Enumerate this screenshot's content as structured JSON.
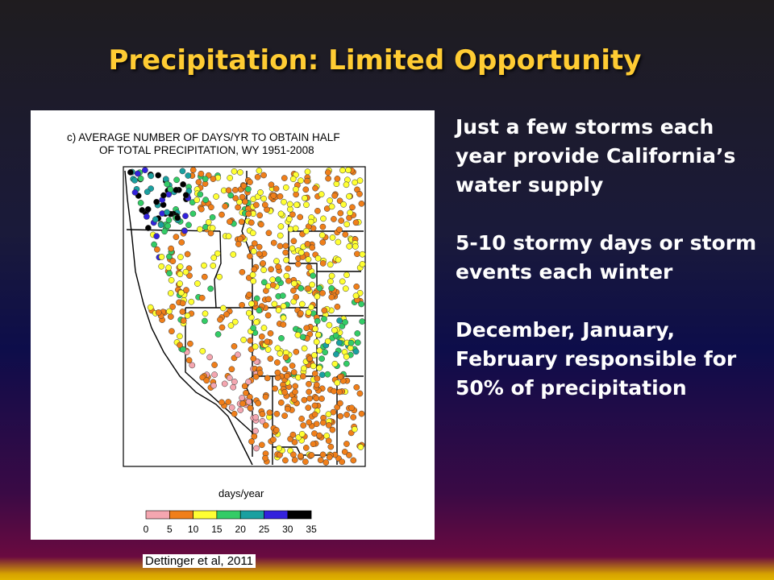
{
  "slide": {
    "title": "Precipitation: Limited Opportunity",
    "bullets": [
      "Just a few storms each year provide California’s water supply",
      "5-10 stormy days or storm events each winter",
      "December, January, February responsible for 50% of precipitation"
    ],
    "citation": "Dettinger et al, 2011",
    "title_color": "#ffcc33"
  },
  "map": {
    "heading_line1": "c) AVERAGE NUMBER OF DAYS/YR TO OBTAIN HALF",
    "heading_line2": "OF TOTAL PRECIPITATION, WY 1951-2008",
    "colorbar_label": "days/year",
    "colorbar_ticks": [
      "0",
      "5",
      "10",
      "15",
      "20",
      "25",
      "30",
      "35"
    ],
    "colorbar_colors": [
      "#f4a6b0",
      "#f07f1a",
      "#ffff33",
      "#33cc66",
      "#1aa0a0",
      "#3322dd",
      "#000000"
    ]
  }
}
